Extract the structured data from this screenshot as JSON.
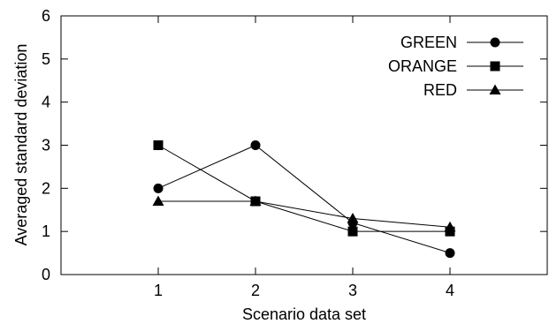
{
  "chart_data": {
    "type": "line",
    "title": "",
    "xlabel": "Scenario data set",
    "ylabel": "Averaged standard deviation",
    "x": [
      1,
      2,
      3,
      4
    ],
    "xlim": [
      0,
      5
    ],
    "ylim": [
      0,
      6
    ],
    "xticks": [
      1,
      2,
      3,
      4
    ],
    "yticks": [
      0,
      1,
      2,
      3,
      4,
      5,
      6
    ],
    "grid": false,
    "legend_position": "top-right",
    "series": [
      {
        "name": "GREEN",
        "marker": "circle",
        "values": [
          2.0,
          3.0,
          1.2,
          0.5
        ]
      },
      {
        "name": "ORANGE",
        "marker": "square",
        "values": [
          3.0,
          1.7,
          1.0,
          1.0
        ]
      },
      {
        "name": "RED",
        "marker": "triangle",
        "values": [
          1.7,
          1.7,
          1.3,
          1.1
        ]
      }
    ]
  }
}
